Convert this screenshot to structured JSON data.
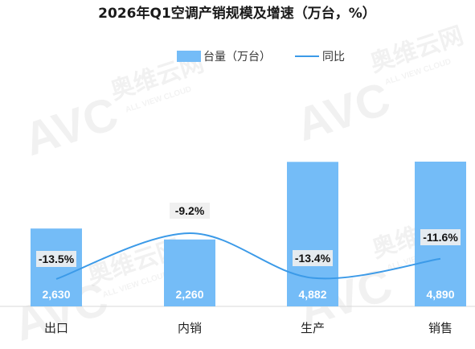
{
  "chart_data": {
    "type": "bar",
    "title": "2026年Q1空调产销规模及增速（万台，%）",
    "categories": [
      "出口",
      "内销",
      "生产",
      "销售"
    ],
    "series": [
      {
        "name": "台量（万台）",
        "type": "bar",
        "values": [
          2630,
          2260,
          4882,
          4890
        ],
        "labels": [
          "2,630",
          "2,260",
          "4,882",
          "4,890"
        ]
      },
      {
        "name": "同比",
        "type": "line",
        "values": [
          -13.5,
          -9.2,
          -13.4,
          -11.6
        ],
        "labels": [
          "-13.5%",
          "-9.2%",
          "-13.4%",
          "-11.6%"
        ]
      }
    ],
    "legend": "top-center",
    "grid": false,
    "colors": {
      "bar": "#74bcf7",
      "line": "#3b9ae8"
    }
  },
  "watermark": {
    "logo": "AVC",
    "brand": "奥维云网",
    "tagline": "ALL VIEW CLOUD"
  }
}
